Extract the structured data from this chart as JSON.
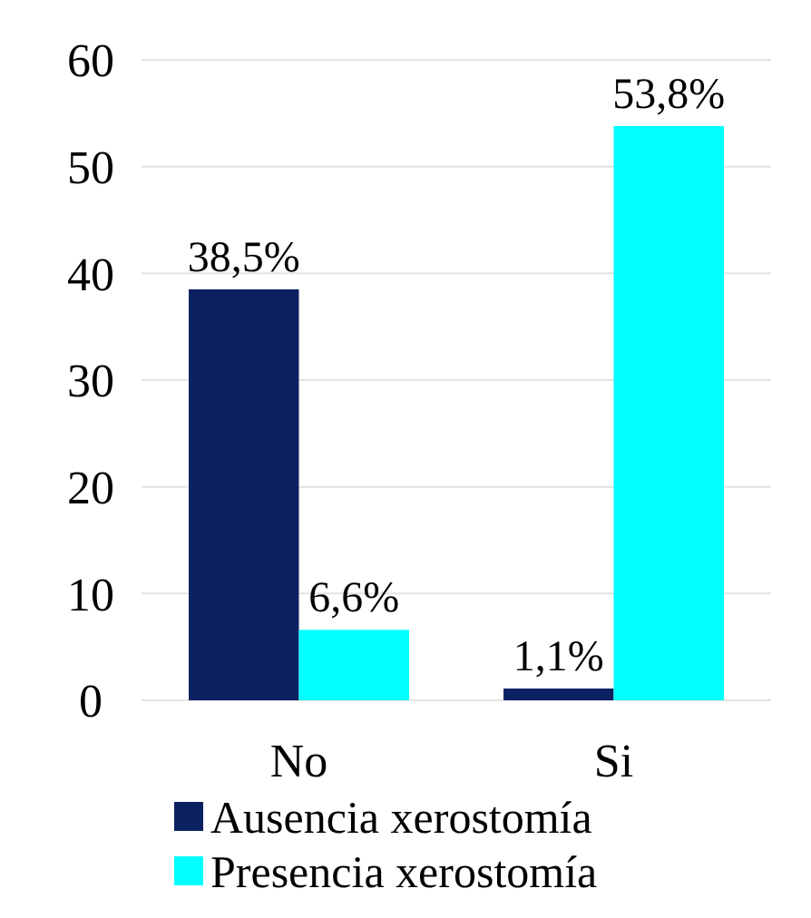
{
  "chart_data": {
    "type": "bar",
    "categories": [
      "No",
      "Si"
    ],
    "series": [
      {
        "name": "Ausencia xerostomía",
        "color": "#0c2161",
        "values": [
          38.5,
          1.1
        ],
        "value_labels": [
          "38,5%",
          "1,1%"
        ]
      },
      {
        "name": "Presencia xerostomía",
        "color": "#00ffff",
        "values": [
          6.6,
          53.8
        ],
        "value_labels": [
          "6,6%",
          "53,8%"
        ]
      }
    ],
    "ylim": [
      0,
      60
    ],
    "yticks": [
      0,
      10,
      20,
      30,
      40,
      50,
      60
    ],
    "grid": "y",
    "legend": "bottom"
  }
}
